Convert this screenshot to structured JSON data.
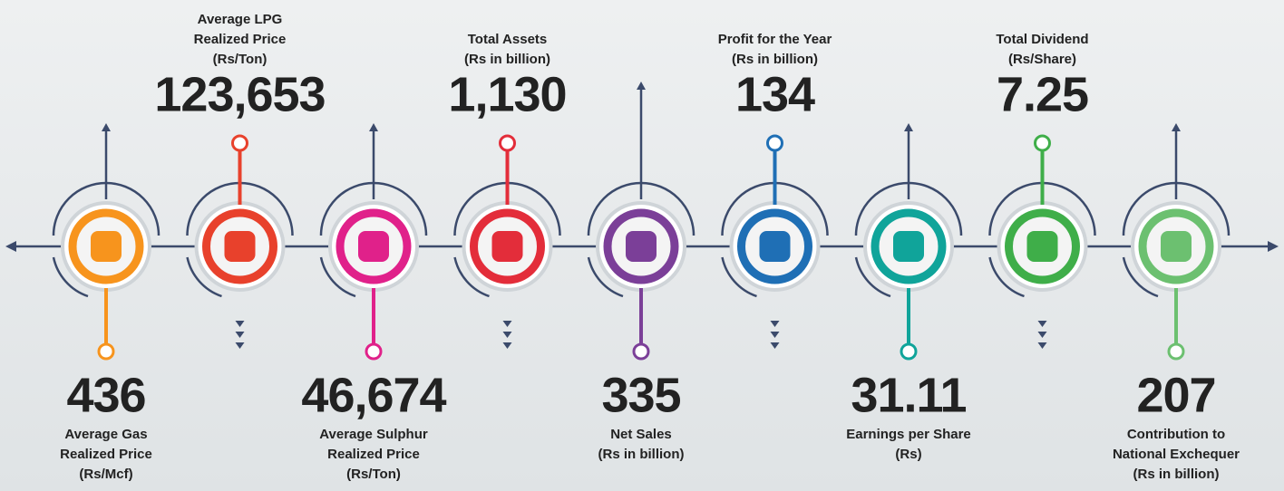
{
  "items": [
    {
      "value": "436",
      "label": [
        "Average Gas",
        "Realized Price",
        "(Rs/Mcf)"
      ],
      "color": "#f7941d"
    },
    {
      "value": "123,653",
      "label": [
        "Average LPG",
        "Realized Price",
        "(Rs/Ton)"
      ],
      "color": "#e8412c"
    },
    {
      "value": "46,674",
      "label": [
        "Average Sulphur",
        "Realized Price",
        "(Rs/Ton)"
      ],
      "color": "#e0218a"
    },
    {
      "value": "1,130",
      "label": [
        "Total Assets",
        "(Rs in billion)"
      ],
      "color": "#e32d3a"
    },
    {
      "value": "335",
      "label": [
        "Net Sales",
        "(Rs in billion)"
      ],
      "color": "#7b3f98"
    },
    {
      "value": "134",
      "label": [
        "Profit for the Year",
        "(Rs in billion)"
      ],
      "color": "#1f6fb5"
    },
    {
      "value": "31.11",
      "label": [
        "Earnings per Share",
        "(Rs)"
      ],
      "color": "#10a49a"
    },
    {
      "value": "7.25",
      "label": [
        "Total Dividend",
        "(Rs/Share)"
      ],
      "color": "#3fae49"
    },
    {
      "value": "207",
      "label": [
        "Contribution to",
        "National Exchequer",
        "(Rs in billion)"
      ],
      "color": "#6cc070"
    }
  ]
}
